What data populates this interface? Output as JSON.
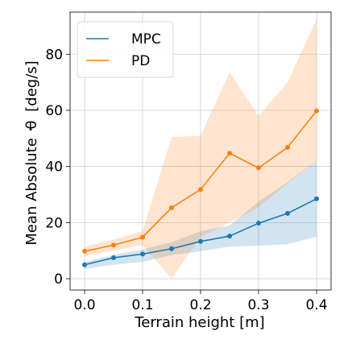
{
  "chart_data": {
    "type": "line",
    "xlabel": "Terrain height [m]",
    "ylabel": "Mean Absolute",
    "ylabel_symbol": "θ",
    "ylabel_unit": "[deg/s]",
    "xlim": [
      -0.025,
      0.425
    ],
    "ylim": [
      -4,
      95
    ],
    "xticks": [
      0.0,
      0.1,
      0.2,
      0.3,
      0.4
    ],
    "xtick_labels": [
      "0.0",
      "0.1",
      "0.2",
      "0.3",
      "0.4"
    ],
    "yticks": [
      0,
      20,
      40,
      60,
      80
    ],
    "ytick_labels": [
      "0",
      "20",
      "40",
      "60",
      "80"
    ],
    "grid": true,
    "legend_position": "top-left",
    "x": [
      0.0,
      0.05,
      0.1,
      0.15,
      0.2,
      0.25,
      0.3,
      0.35,
      0.4
    ],
    "series": [
      {
        "name": "MPC",
        "color": "#1f77b4",
        "values": [
          5.0,
          7.5,
          8.8,
          10.7,
          13.3,
          15.2,
          19.8,
          23.3,
          28.5
        ],
        "lower": [
          3.5,
          5.0,
          6.0,
          8.5,
          9.8,
          11.5,
          11.8,
          12.3,
          15.0
        ],
        "upper": [
          6.0,
          8.5,
          10.5,
          13.0,
          17.0,
          19.0,
          27.5,
          34.5,
          42.0
        ]
      },
      {
        "name": "PD",
        "color": "#ff7f0e",
        "values": [
          9.8,
          12.0,
          14.8,
          25.3,
          31.8,
          44.7,
          39.5,
          46.8,
          59.8
        ],
        "lower": [
          8.0,
          10.0,
          12.0,
          0.0,
          15.0,
          20.0,
          25.5,
          34.0,
          42.0
        ],
        "upper": [
          11.5,
          14.0,
          17.0,
          50.5,
          51.0,
          73.5,
          58.0,
          70.0,
          92.5
        ]
      }
    ]
  }
}
